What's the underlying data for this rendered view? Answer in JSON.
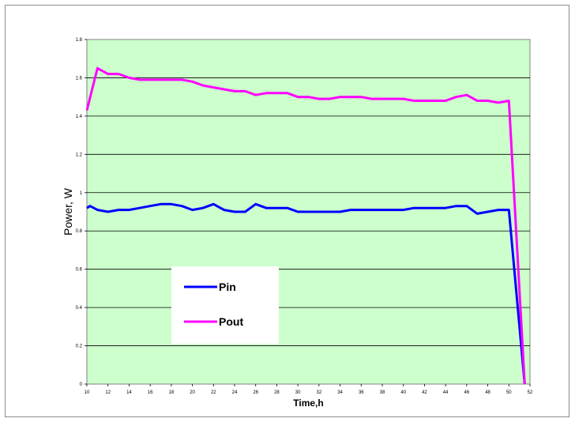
{
  "chart_data": {
    "type": "line",
    "title": "",
    "xlabel": "Time,h",
    "ylabel": "Power, W",
    "xlim": [
      10,
      52
    ],
    "ylim": [
      0,
      1.8
    ],
    "xticks": [
      "10",
      "12",
      "14",
      "16",
      "18",
      "20",
      "22",
      "24",
      "26",
      "28",
      "30",
      "32",
      "34",
      "36",
      "38",
      "40",
      "42",
      "44",
      "46",
      "48",
      "50",
      "52"
    ],
    "yticks": [
      "0",
      "0.2",
      "0.4",
      "0.6",
      "0.8",
      "1",
      "1.2",
      "1.4",
      "1.6",
      "1.8"
    ],
    "grid": "horizontal",
    "plot_background": "#ccffcc",
    "legend_position": "lower-left",
    "series": [
      {
        "name": "Pin",
        "color": "#0000ff",
        "x": [
          10,
          10.3,
          11,
          12,
          13,
          14,
          15,
          16,
          17,
          18,
          19,
          20,
          21,
          22,
          23,
          24,
          25,
          26,
          27,
          28,
          29,
          30,
          31,
          32,
          33,
          34,
          35,
          36,
          37,
          38,
          39,
          40,
          41,
          42,
          43,
          44,
          45,
          46,
          47,
          48,
          49,
          50,
          51.5
        ],
        "y": [
          0.92,
          0.93,
          0.91,
          0.9,
          0.91,
          0.91,
          0.92,
          0.93,
          0.94,
          0.94,
          0.93,
          0.91,
          0.92,
          0.94,
          0.91,
          0.9,
          0.9,
          0.94,
          0.92,
          0.92,
          0.92,
          0.9,
          0.9,
          0.9,
          0.9,
          0.9,
          0.91,
          0.91,
          0.91,
          0.91,
          0.91,
          0.91,
          0.92,
          0.92,
          0.92,
          0.92,
          0.93,
          0.93,
          0.89,
          0.9,
          0.91,
          0.91,
          0.0
        ]
      },
      {
        "name": "Pout",
        "color": "#ff00ff",
        "x": [
          10,
          11,
          12,
          13,
          14,
          15,
          16,
          17,
          18,
          19,
          20,
          21,
          22,
          23,
          24,
          25,
          26,
          27,
          28,
          29,
          30,
          31,
          32,
          33,
          34,
          35,
          36,
          37,
          38,
          39,
          40,
          41,
          42,
          43,
          44,
          45,
          46,
          47,
          48,
          49,
          50,
          51.5
        ],
        "y": [
          1.43,
          1.65,
          1.62,
          1.62,
          1.6,
          1.59,
          1.59,
          1.59,
          1.59,
          1.59,
          1.58,
          1.56,
          1.55,
          1.54,
          1.53,
          1.53,
          1.51,
          1.52,
          1.52,
          1.52,
          1.5,
          1.5,
          1.49,
          1.49,
          1.5,
          1.5,
          1.5,
          1.49,
          1.49,
          1.49,
          1.49,
          1.48,
          1.48,
          1.48,
          1.48,
          1.5,
          1.51,
          1.48,
          1.48,
          1.47,
          1.48,
          0.0
        ]
      }
    ]
  }
}
